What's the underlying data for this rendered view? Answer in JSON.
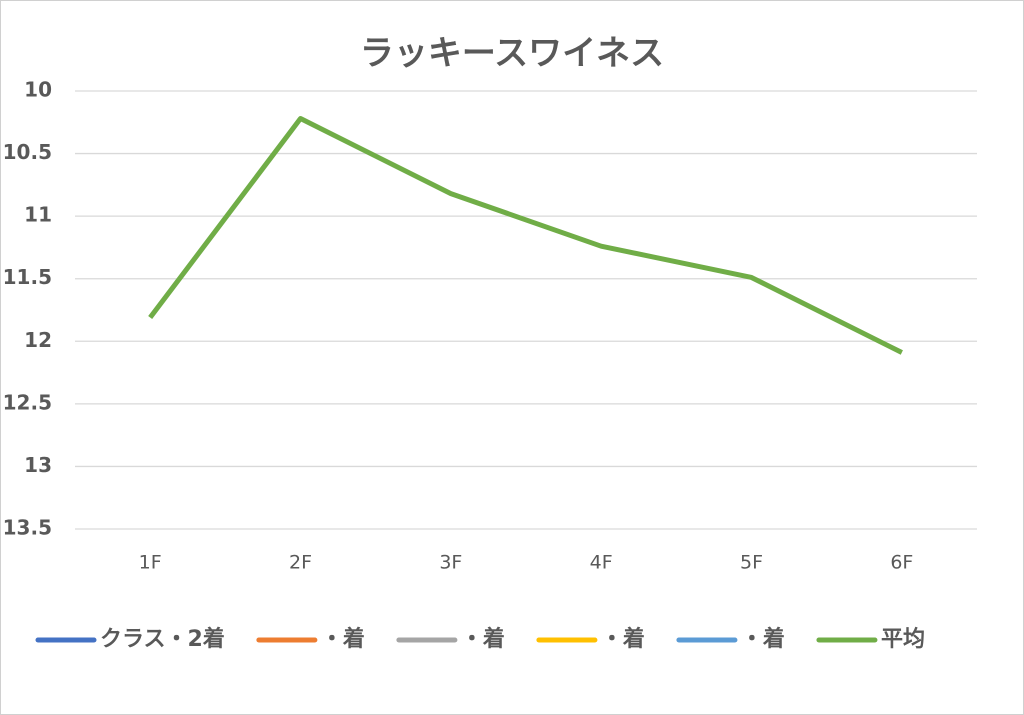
{
  "chart_data": {
    "type": "line",
    "title": "ラッキースワイネス",
    "categories": [
      "1F",
      "2F",
      "3F",
      "4F",
      "5F",
      "6F"
    ],
    "series": [
      {
        "name": "クラス・2着",
        "color": "#4472c4",
        "values": [
          null,
          null,
          null,
          null,
          null,
          null
        ]
      },
      {
        "name": "・着",
        "color": "#ed7d31",
        "values": [
          null,
          null,
          null,
          null,
          null,
          null
        ]
      },
      {
        "name": "・着",
        "color": "#a5a5a5",
        "values": [
          null,
          null,
          null,
          null,
          null,
          null
        ]
      },
      {
        "name": "・着",
        "color": "#ffc000",
        "values": [
          null,
          null,
          null,
          null,
          null,
          null
        ]
      },
      {
        "name": "・着",
        "color": "#5b9bd5",
        "values": [
          null,
          null,
          null,
          null,
          null,
          null
        ]
      },
      {
        "name": "平均",
        "color": "#70ad47",
        "values": [
          11.81,
          10.22,
          10.82,
          11.24,
          11.49,
          12.09
        ]
      }
    ],
    "ylim": [
      13.5,
      10
    ],
    "yticks": [
      10,
      10.5,
      11,
      11.5,
      12,
      12.5,
      13,
      13.5
    ],
    "grid": true,
    "legend": "bottom"
  }
}
